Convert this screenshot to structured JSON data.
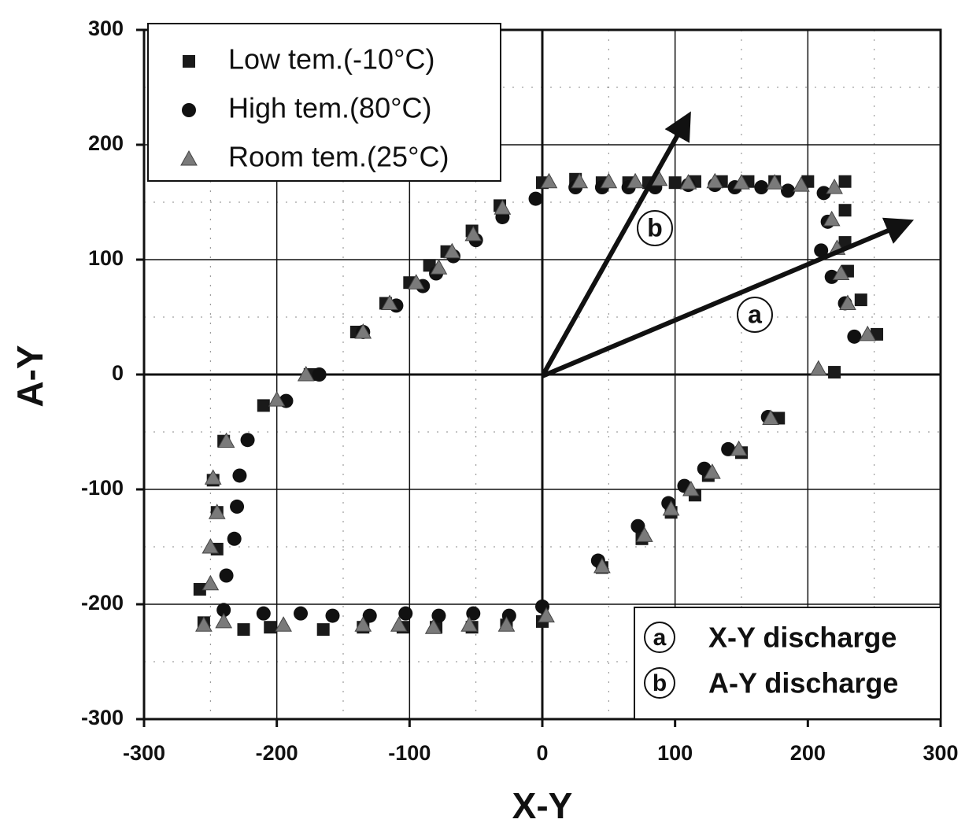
{
  "chart_data": {
    "type": "scatter",
    "xlabel": "X-Y",
    "ylabel": "A-Y",
    "xlim": [
      -300,
      300
    ],
    "ylim": [
      -300,
      300
    ],
    "xticks": [
      -300,
      -200,
      -100,
      0,
      100,
      200,
      300
    ],
    "yticks": [
      -300,
      -200,
      -100,
      0,
      100,
      200,
      300
    ],
    "minor_xticks": [
      -250,
      -150,
      -50,
      50,
      150,
      250
    ],
    "minor_yticks": [
      -250,
      -150,
      -50,
      50,
      150,
      250
    ],
    "grid": true,
    "legend": "upper left",
    "series": [
      {
        "name": "Low tem.(-10°C)",
        "color": "#1a1a1a",
        "marker": "square",
        "x": [
          0,
          25,
          45,
          65,
          80,
          100,
          115,
          135,
          155,
          175,
          200,
          228,
          228,
          228,
          230,
          240,
          252,
          220,
          178,
          150,
          125,
          115,
          97,
          75,
          45,
          0,
          -27,
          -53,
          -80,
          -105,
          -135,
          -165,
          -205,
          -225,
          -255,
          -258,
          -245,
          -245,
          -248,
          -240,
          -210,
          -175,
          -140,
          -118,
          -100,
          -85,
          -72,
          -53,
          -32
        ],
        "values": [
          167,
          170,
          167,
          167,
          167,
          167,
          168,
          168,
          168,
          168,
          168,
          168,
          143,
          115,
          90,
          65,
          35,
          2,
          -38,
          -68,
          -88,
          -105,
          -120,
          -143,
          -168,
          -215,
          -218,
          -220,
          -220,
          -220,
          -220,
          -222,
          -220,
          -222,
          -216,
          -187,
          -152,
          -120,
          -92,
          -58,
          -27,
          0,
          37,
          62,
          80,
          95,
          107,
          125,
          147
        ]
      },
      {
        "name": "High tem.(80°C)",
        "color": "#111111",
        "marker": "circle",
        "x": [
          -5,
          -30,
          25,
          45,
          65,
          85,
          110,
          130,
          145,
          165,
          185,
          212,
          215,
          210,
          218,
          228,
          235,
          170,
          140,
          122,
          107,
          95,
          72,
          42,
          0,
          -25,
          -52,
          -78,
          -103,
          -130,
          -158,
          -182,
          -210,
          -240,
          -238,
          -232,
          -230,
          -228,
          -222,
          -193,
          -168,
          -135,
          -110,
          -90,
          -80,
          -67,
          -50
        ],
        "values": [
          153,
          137,
          163,
          163,
          163,
          163,
          165,
          165,
          163,
          163,
          160,
          158,
          133,
          108,
          85,
          62,
          33,
          -37,
          -65,
          -82,
          -97,
          -112,
          -132,
          -162,
          -202,
          -210,
          -208,
          -210,
          -208,
          -210,
          -210,
          -208,
          -208,
          -205,
          -175,
          -143,
          -115,
          -88,
          -57,
          -23,
          0,
          37,
          60,
          77,
          88,
          103,
          117
        ]
      },
      {
        "name": "Room tem.(25°C)",
        "color": "#7a7a7a",
        "marker": "triangle",
        "x": [
          5,
          28,
          50,
          70,
          88,
          110,
          130,
          150,
          175,
          195,
          220,
          218,
          222,
          225,
          230,
          245,
          208,
          172,
          148,
          128,
          112,
          97,
          77,
          45,
          3,
          -27,
          -55,
          -82,
          -108,
          -135,
          -195,
          -240,
          -255,
          -250,
          -250,
          -245,
          -248,
          -238,
          -200,
          -178,
          -135,
          -115,
          -95,
          -78,
          -68,
          -52,
          -30
        ],
        "values": [
          168,
          168,
          168,
          168,
          170,
          167,
          168,
          167,
          167,
          165,
          163,
          135,
          110,
          88,
          62,
          35,
          5,
          -38,
          -65,
          -85,
          -100,
          -117,
          -140,
          -167,
          -210,
          -218,
          -218,
          -220,
          -218,
          -218,
          -218,
          -215,
          -218,
          -182,
          -150,
          -120,
          -90,
          -58,
          -22,
          0,
          37,
          62,
          80,
          93,
          107,
          122,
          145
        ]
      }
    ],
    "annotations": [
      "a",
      "b"
    ],
    "discharge_legend": [
      {
        "key": "a",
        "label": "X-Y discharge"
      },
      {
        "key": "b",
        "label": "A-Y discharge"
      }
    ]
  }
}
